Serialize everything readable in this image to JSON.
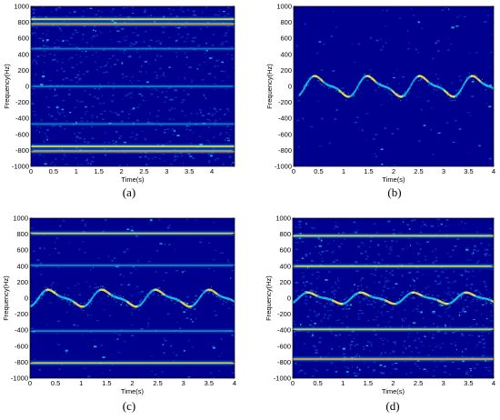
{
  "colors": {
    "background": "#00008f",
    "line_strong": "#19c4e6",
    "line_core": "#f3e64a",
    "line_hot": "#e0322c",
    "speckle": "#1a4fd8"
  },
  "chart_data": [
    {
      "panel": "a",
      "caption": "(a)",
      "type": "heatmap",
      "xlabel": "Time(s)",
      "ylabel": "Frequency(Hz)",
      "xlim": [
        0,
        4.5
      ],
      "ylim": [
        -1000,
        1000
      ],
      "xticks": [
        0,
        0.5,
        1,
        1.5,
        2,
        2.5,
        3,
        3.5,
        4
      ],
      "yticks": [
        -1000,
        -800,
        -600,
        -400,
        -200,
        0,
        200,
        400,
        600,
        800,
        1000
      ],
      "lines": [
        {
          "freq": 840,
          "level": 0.9
        },
        {
          "freq": 780,
          "level": 1.0
        },
        {
          "freq": 470,
          "level": 0.25
        },
        {
          "freq": 0,
          "level": 0.3
        },
        {
          "freq": -470,
          "level": 0.25
        },
        {
          "freq": -750,
          "level": 0.9
        },
        {
          "freq": -810,
          "level": 0.95
        }
      ],
      "micro_doppler": null,
      "noise": 0.85
    },
    {
      "panel": "b",
      "caption": "(b)",
      "type": "heatmap",
      "xlabel": "Time(s)",
      "ylabel": "Frequency(Hz)",
      "xlim": [
        0,
        4
      ],
      "ylim": [
        -1000,
        1000
      ],
      "xticks": [
        0,
        0.5,
        1,
        1.5,
        2,
        2.5,
        3,
        3.5,
        4
      ],
      "yticks": [
        -1000,
        -800,
        -600,
        -400,
        -200,
        0,
        200,
        400,
        600,
        800,
        1000
      ],
      "lines": [],
      "micro_doppler": {
        "period": 1.05,
        "phase": 0.22,
        "amplitude": 110,
        "t_start": 0.1,
        "t_end": 4
      },
      "noise": 0.15
    },
    {
      "panel": "c",
      "caption": "(c)",
      "type": "heatmap",
      "xlabel": "Time(s)",
      "ylabel": "Frequency(Hz)",
      "xlim": [
        0,
        4
      ],
      "ylim": [
        -1000,
        1000
      ],
      "xticks": [
        0,
        0.5,
        1,
        1.5,
        2,
        2.5,
        3,
        3.5,
        4
      ],
      "yticks": [
        -1000,
        -800,
        -600,
        -400,
        -200,
        0,
        200,
        400,
        600,
        800,
        1000
      ],
      "lines": [
        {
          "freq": 810,
          "level": 0.8
        },
        {
          "freq": 410,
          "level": 0.35
        },
        {
          "freq": -410,
          "level": 0.35
        },
        {
          "freq": -810,
          "level": 0.8
        }
      ],
      "micro_doppler": {
        "period": 1.05,
        "phase": 0.15,
        "amplitude": 90,
        "t_start": 0,
        "t_end": 4
      },
      "noise": 0.25
    },
    {
      "panel": "d",
      "caption": "(d)",
      "type": "heatmap",
      "xlabel": "Time(s)",
      "ylabel": "Frequency(Hz)",
      "xlim": [
        0,
        4
      ],
      "ylim": [
        -1000,
        1000
      ],
      "xticks": [
        0,
        0.5,
        1,
        1.5,
        2,
        2.5,
        3,
        3.5,
        4
      ],
      "yticks": [
        -1000,
        -800,
        -600,
        -400,
        -200,
        0,
        200,
        400,
        600,
        800,
        1000
      ],
      "lines": [
        {
          "freq": 780,
          "level": 0.9
        },
        {
          "freq": 400,
          "level": 0.85
        },
        {
          "freq": -390,
          "level": 0.85
        },
        {
          "freq": -760,
          "level": 1.0
        }
      ],
      "micro_doppler": {
        "period": 1.05,
        "phase": 0.1,
        "amplitude": 60,
        "t_start": 0,
        "t_end": 4
      },
      "noise": 0.8
    }
  ]
}
